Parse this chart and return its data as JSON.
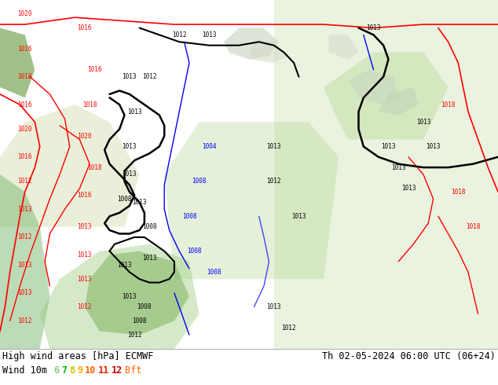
{
  "title_left": "High wind areas [hPa] ECMWF",
  "title_right": "Th 02-05-2024 06:00 UTC (06+24)",
  "subtitle_label": "Wind 10m",
  "bft_nums": [
    "6",
    "7",
    "8",
    "9",
    "10",
    "11",
    "12"
  ],
  "bft_colors": [
    "#90c878",
    "#00bb00",
    "#cccc00",
    "#ffaa00",
    "#ff6600",
    "#ee2200",
    "#cc0000"
  ],
  "bft_suffix": "Bft",
  "bft_suffix_color": "#ff6600",
  "bg_color": "#b8d898",
  "bottom_bg": "#ffffff",
  "bottom_border": "#000000",
  "text_color": "#000000",
  "title_fontsize": 8.5,
  "label_fontsize": 8.5,
  "figsize": [
    6.34,
    4.9
  ],
  "dpi": 100,
  "map_green_light": "#b0d890",
  "map_green_mid": "#98cc78",
  "map_green_dark": "#80b860",
  "line_red": "#ff0000",
  "line_black": "#000000",
  "line_blue": "#0000ff",
  "line_blue2": "#4444ff"
}
